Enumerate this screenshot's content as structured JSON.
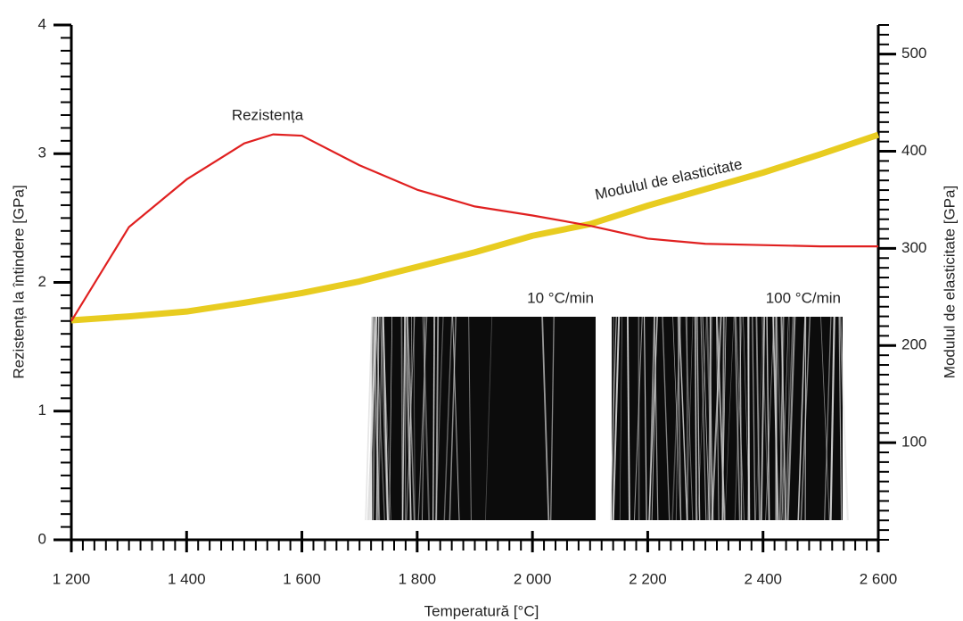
{
  "chart_data": {
    "type": "line",
    "x_label": "Temperatură [°C]",
    "y_label": "Rezistența la întindere [GPa]",
    "y2_label": "Modulul de elasticitate [GPa]",
    "x": [
      1200,
      1300,
      1400,
      1500,
      1550,
      1600,
      1700,
      1800,
      1900,
      2000,
      2100,
      2200,
      2300,
      2400,
      2500,
      2600
    ],
    "series": [
      {
        "name": "Rezistența",
        "color": "#e02020",
        "axis": "y",
        "values": [
          1.7,
          2.43,
          2.8,
          3.08,
          3.15,
          3.14,
          2.91,
          2.72,
          2.59,
          2.52,
          2.44,
          2.34,
          2.3,
          2.29,
          2.28,
          2.28
        ]
      },
      {
        "name": "Modulul de elasticitate",
        "color": "#e8cc20",
        "axis": "y2",
        "values": [
          226,
          230,
          235,
          244,
          249,
          254,
          266,
          281,
          296,
          313,
          325,
          344,
          361,
          378,
          397,
          417
        ]
      }
    ],
    "xlim": [
      1200,
      2600
    ],
    "xticks": [
      {
        "value": 1200,
        "label": "1 200"
      },
      {
        "value": 1400,
        "label": "1 400"
      },
      {
        "value": 1600,
        "label": "1 600"
      },
      {
        "value": 1800,
        "label": "1 800"
      },
      {
        "value": 2000,
        "label": "2 000"
      },
      {
        "value": 2200,
        "label": "2 200"
      },
      {
        "value": 2400,
        "label": "2 400"
      },
      {
        "value": 2600,
        "label": "2 600"
      }
    ],
    "ylim": [
      0,
      4
    ],
    "yticks": [
      0,
      1,
      2,
      3,
      4
    ],
    "y2lim": [
      0,
      530
    ],
    "y2ticks": [
      100,
      200,
      300,
      400,
      500
    ],
    "x_minor_step": 20,
    "y_minor_step": 0.1,
    "y2_minor_step": 10,
    "insets": [
      "10 °C/min",
      "100 °C/min"
    ]
  }
}
